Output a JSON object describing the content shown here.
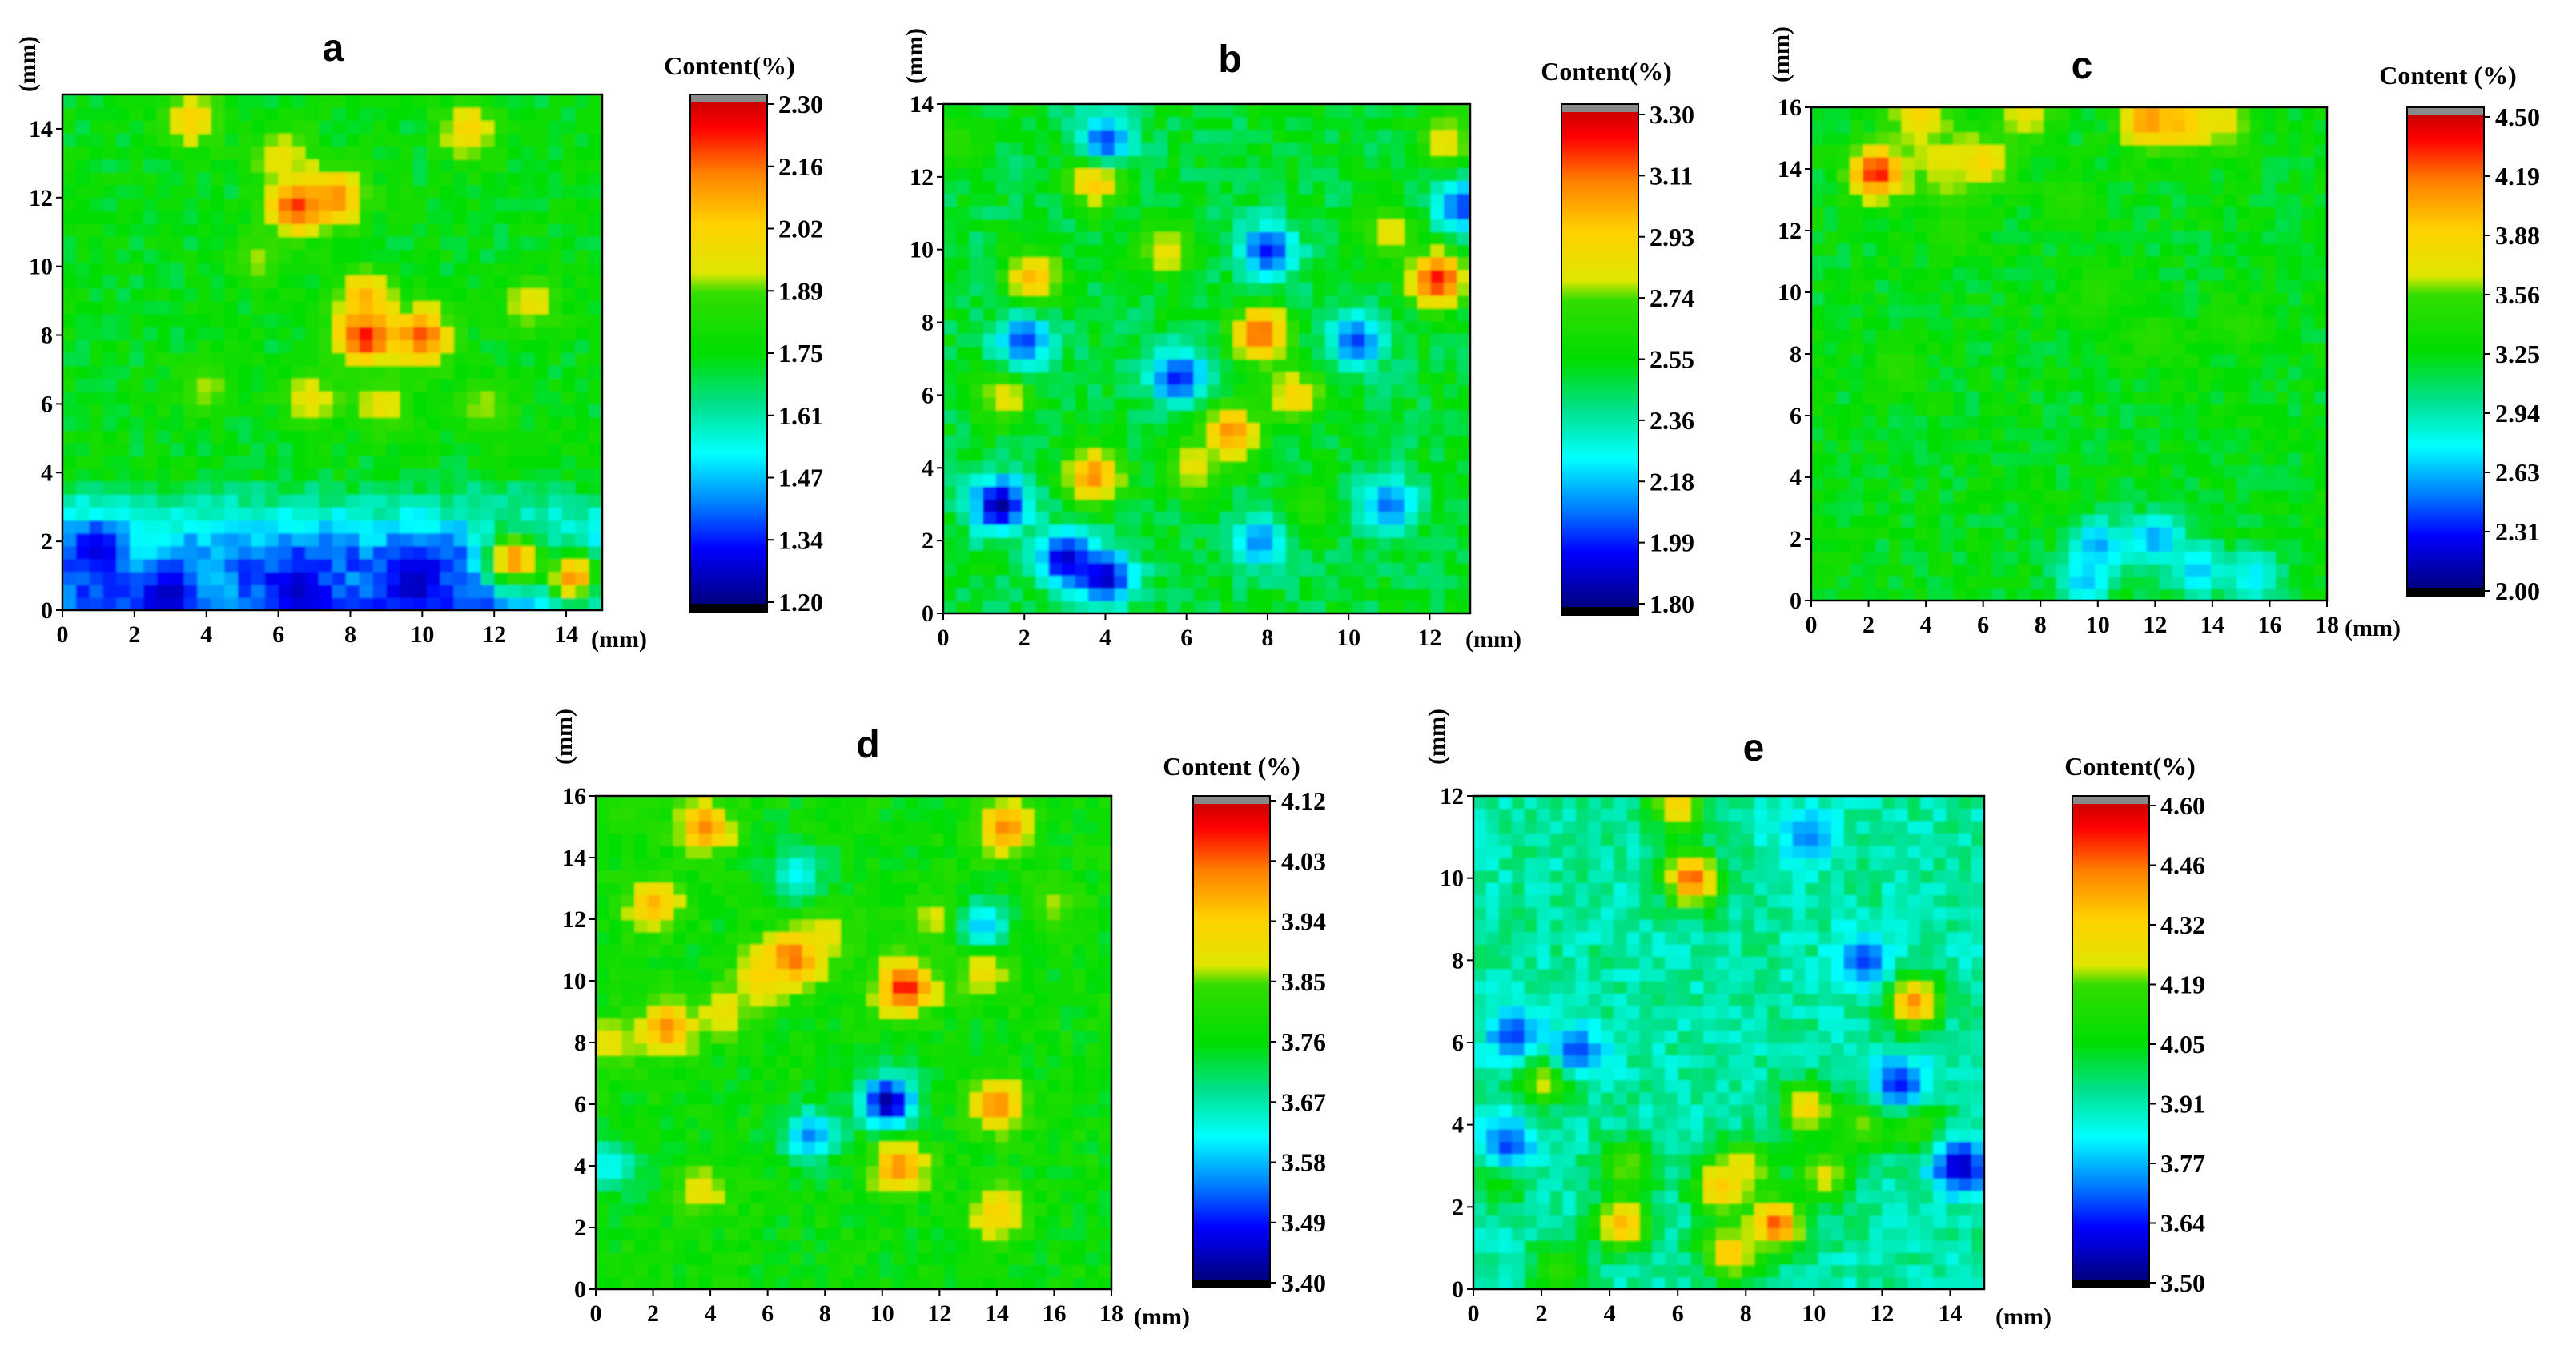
{
  "chart_data": [
    {
      "type": "heatmap",
      "title": "a",
      "xlabel": "(mm)",
      "ylabel": "(mm)",
      "xticks": [
        0,
        2,
        4,
        6,
        8,
        10,
        12,
        14
      ],
      "yticks": [
        0,
        2,
        4,
        6,
        8,
        10,
        12,
        14
      ],
      "xlim": [
        0,
        15
      ],
      "ylim": [
        0,
        15
      ],
      "colorbar_label": "Content(%)",
      "colorbar_ticks": [
        "2.30",
        "2.16",
        "2.02",
        "1.89",
        "1.75",
        "1.61",
        "1.47",
        "1.34",
        "1.20"
      ],
      "range": [
        1.2,
        2.3
      ],
      "base": 0.5,
      "low_rows": 4.0,
      "low_val": 0.18,
      "hot_spots": [
        [
          6.5,
          11.8,
          0.95
        ],
        [
          8.4,
          8.0,
          0.98
        ],
        [
          10.0,
          8.0,
          0.9
        ],
        [
          7.6,
          12.0,
          0.85
        ],
        [
          12.6,
          1.5,
          0.85
        ],
        [
          14.2,
          1.0,
          0.85
        ],
        [
          8.4,
          9.1,
          0.8
        ],
        [
          3.6,
          14.3,
          0.75
        ],
        [
          11.3,
          14.0,
          0.75
        ],
        [
          6.9,
          6.2,
          0.7
        ],
        [
          8.9,
          6.0,
          0.7
        ],
        [
          11.7,
          6.0,
          0.65
        ],
        [
          13.0,
          8.9,
          0.7
        ],
        [
          5.4,
          10.2,
          0.65
        ],
        [
          6.1,
          13.2,
          0.7
        ],
        [
          4.0,
          6.5,
          0.65
        ],
        [
          3.8,
          0.8,
          0.3
        ],
        [
          2.1,
          1.9,
          0.35
        ]
      ],
      "cold_spots": [
        [
          3.0,
          0.5,
          0.05
        ],
        [
          9.8,
          0.8,
          0.05
        ],
        [
          1.0,
          1.8,
          0.08
        ],
        [
          6.5,
          0.6,
          0.06
        ]
      ]
    },
    {
      "type": "heatmap",
      "title": "b",
      "xlabel": "(mm)",
      "ylabel": "(mm)",
      "xticks": [
        0,
        2,
        4,
        6,
        8,
        10,
        12
      ],
      "yticks": [
        0,
        2,
        4,
        6,
        8,
        10,
        12,
        14
      ],
      "xlim": [
        0,
        13
      ],
      "ylim": [
        0,
        14
      ],
      "colorbar_label": "Content(%)",
      "colorbar_ticks": [
        "3.30",
        "3.11",
        "2.93",
        "2.74",
        "2.55",
        "2.36",
        "2.18",
        "1.99",
        "1.80"
      ],
      "range": [
        1.8,
        3.3
      ],
      "base": 0.47,
      "low_rows": 0,
      "low_val": 0.4,
      "hot_spots": [
        [
          12.2,
          9.2,
          0.95
        ],
        [
          7.8,
          7.7,
          0.9
        ],
        [
          7.1,
          5.0,
          0.85
        ],
        [
          3.8,
          12.0,
          0.85
        ],
        [
          3.7,
          3.8,
          0.85
        ],
        [
          2.2,
          9.2,
          0.8
        ],
        [
          8.7,
          6.0,
          0.75
        ],
        [
          11.0,
          10.5,
          0.7
        ],
        [
          1.5,
          6.0,
          0.7
        ],
        [
          5.5,
          10.0,
          0.7
        ],
        [
          6.2,
          4.0,
          0.7
        ],
        [
          12.4,
          13.0,
          0.7
        ],
        [
          9.0,
          3.0,
          0.6
        ],
        [
          0.3,
          13.0,
          0.6
        ]
      ],
      "cold_spots": [
        [
          1.4,
          3.0,
          0.02
        ],
        [
          3.0,
          1.5,
          0.06
        ],
        [
          4.0,
          1.0,
          0.05
        ],
        [
          5.8,
          6.5,
          0.12
        ],
        [
          4.0,
          13.0,
          0.15
        ],
        [
          8.0,
          10.0,
          0.12
        ],
        [
          10.2,
          7.5,
          0.15
        ],
        [
          12.8,
          11.2,
          0.15
        ],
        [
          7.8,
          2.0,
          0.2
        ],
        [
          2.0,
          7.5,
          0.15
        ],
        [
          11.0,
          3.0,
          0.18
        ]
      ]
    },
    {
      "type": "heatmap",
      "title": "c",
      "xlabel": "(mm)",
      "ylabel": "(mm)",
      "xticks": [
        0,
        2,
        4,
        6,
        8,
        10,
        12,
        14,
        16,
        18
      ],
      "yticks": [
        0,
        2,
        4,
        6,
        8,
        10,
        12,
        14,
        16
      ],
      "xlim": [
        0,
        18
      ],
      "ylim": [
        0,
        16
      ],
      "colorbar_label": "Content (%)",
      "colorbar_ticks": [
        "4.50",
        "4.19",
        "3.88",
        "3.56",
        "3.25",
        "2.94",
        "2.63",
        "2.31",
        "2.00"
      ],
      "range": [
        2.0,
        4.5
      ],
      "base": 0.5,
      "low_rows": 0,
      "low_val": 0.4,
      "hot_spots": [
        [
          2.3,
          13.9,
          0.95
        ],
        [
          11.8,
          15.6,
          0.85
        ],
        [
          13.0,
          15.5,
          0.8
        ],
        [
          3.8,
          15.8,
          0.75
        ],
        [
          4.5,
          14.3,
          0.7
        ],
        [
          6.0,
          14.2,
          0.75
        ],
        [
          4.8,
          13.5,
          0.65
        ],
        [
          14.5,
          15.5,
          0.7
        ],
        [
          7.5,
          15.8,
          0.7
        ],
        [
          9.0,
          13.0,
          0.6
        ],
        [
          12.0,
          8.5,
          0.6
        ],
        [
          15.0,
          9.0,
          0.6
        ],
        [
          10.0,
          10.0,
          0.6
        ],
        [
          3.0,
          7.5,
          0.6
        ],
        [
          5.0,
          12.0,
          0.6
        ]
      ],
      "cold_spots": [
        [
          10.0,
          1.8,
          0.22
        ],
        [
          12.0,
          2.0,
          0.22
        ],
        [
          13.5,
          1.0,
          0.25
        ],
        [
          9.5,
          0.6,
          0.25
        ],
        [
          15.5,
          0.8,
          0.28
        ]
      ]
    },
    {
      "type": "heatmap",
      "title": "d",
      "xlabel": "(mm)",
      "ylabel": "(mm)",
      "xticks": [
        0,
        2,
        4,
        6,
        8,
        10,
        12,
        14,
        16,
        18
      ],
      "yticks": [
        0,
        2,
        4,
        6,
        8,
        10,
        12,
        14,
        16
      ],
      "xlim": [
        0,
        18
      ],
      "ylim": [
        0,
        16
      ],
      "colorbar_label": "Content (%)",
      "colorbar_ticks": [
        "4.12",
        "4.03",
        "3.94",
        "3.85",
        "3.76",
        "3.67",
        "3.58",
        "3.49",
        "3.40"
      ],
      "range": [
        3.4,
        4.12
      ],
      "base": 0.52,
      "low_rows": 0,
      "low_val": 0.4,
      "hot_spots": [
        [
          6.9,
          10.8,
          0.95
        ],
        [
          10.8,
          9.8,
          0.95
        ],
        [
          2.5,
          8.5,
          0.85
        ],
        [
          3.8,
          15.0,
          0.85
        ],
        [
          10.6,
          4.0,
          0.85
        ],
        [
          14.0,
          6.0,
          0.85
        ],
        [
          14.3,
          15.0,
          0.85
        ],
        [
          2.0,
          12.5,
          0.8
        ],
        [
          4.5,
          9.0,
          0.7
        ],
        [
          5.8,
          10.2,
          0.75
        ],
        [
          13.5,
          10.5,
          0.75
        ],
        [
          8.0,
          11.5,
          0.7
        ],
        [
          12.0,
          12.0,
          0.7
        ],
        [
          14.0,
          2.5,
          0.75
        ],
        [
          0.5,
          8.0,
          0.7
        ],
        [
          3.7,
          3.2,
          0.7
        ],
        [
          16.0,
          12.5,
          0.65
        ],
        [
          1.0,
          15.5,
          0.6
        ]
      ],
      "cold_spots": [
        [
          10.2,
          6.1,
          0.02
        ],
        [
          7.5,
          5.0,
          0.2
        ],
        [
          13.5,
          11.8,
          0.25
        ],
        [
          0.5,
          4.0,
          0.3
        ],
        [
          7.0,
          13.5,
          0.3
        ]
      ]
    },
    {
      "type": "heatmap",
      "title": "e",
      "xlabel": "(mm)",
      "ylabel": "(mm)",
      "xticks": [
        0,
        2,
        4,
        6,
        8,
        10,
        12,
        14
      ],
      "yticks": [
        0,
        2,
        4,
        6,
        8,
        10,
        12
      ],
      "xlim": [
        0,
        15
      ],
      "ylim": [
        0,
        12
      ],
      "colorbar_label": "Content(%)",
      "colorbar_ticks": [
        "4.60",
        "4.46",
        "4.32",
        "4.19",
        "4.05",
        "3.91",
        "3.77",
        "3.64",
        "3.50"
      ],
      "range": [
        3.5,
        4.6
      ],
      "base": 0.38,
      "low_rows": 0,
      "low_val": 0.4,
      "hot_spots": [
        [
          6.4,
          10.0,
          0.9
        ],
        [
          8.9,
          1.6,
          0.9
        ],
        [
          12.9,
          7.0,
          0.85
        ],
        [
          4.4,
          1.6,
          0.8
        ],
        [
          7.3,
          2.5,
          0.8
        ],
        [
          7.5,
          0.9,
          0.8
        ],
        [
          9.8,
          4.4,
          0.75
        ],
        [
          2.2,
          5.2,
          0.75
        ],
        [
          8.0,
          3.0,
          0.7
        ],
        [
          11.5,
          4.0,
          0.65
        ],
        [
          13.0,
          4.0,
          0.65
        ],
        [
          6.0,
          11.8,
          0.75
        ],
        [
          10.3,
          2.8,
          0.7
        ],
        [
          4.5,
          3.0,
          0.65
        ],
        [
          0.8,
          2.8,
          0.6
        ],
        [
          2.5,
          0.5,
          0.6
        ]
      ],
      "cold_spots": [
        [
          14.3,
          3.0,
          0.05
        ],
        [
          12.5,
          5.0,
          0.12
        ],
        [
          3.0,
          5.8,
          0.15
        ],
        [
          1.2,
          6.2,
          0.15
        ],
        [
          9.8,
          11.0,
          0.2
        ],
        [
          1.0,
          3.5,
          0.15
        ],
        [
          11.5,
          8.0,
          0.15
        ]
      ]
    }
  ]
}
